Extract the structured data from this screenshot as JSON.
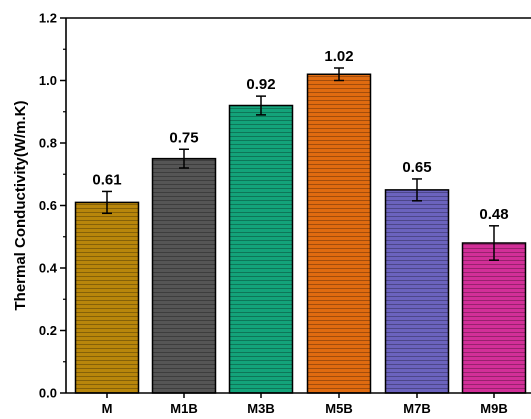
{
  "chart_data": {
    "type": "bar",
    "categories": [
      "M",
      "M1B",
      "M3B",
      "M5B",
      "M7B",
      "M9B"
    ],
    "values": [
      0.61,
      0.75,
      0.92,
      1.02,
      0.65,
      0.48
    ],
    "errors": [
      0.035,
      0.03,
      0.03,
      0.02,
      0.035,
      0.055
    ],
    "data_labels": [
      "0.61",
      "0.75",
      "0.92",
      "1.02",
      "0.65",
      "0.48"
    ],
    "colors": [
      "#b8860b",
      "#555555",
      "#13a37a",
      "#e06b10",
      "#6b63be",
      "#d22f98"
    ],
    "ylabel": "Thermal Conductivity(W/m.K)",
    "xlabel": "",
    "ylim": [
      0,
      1.2
    ],
    "yticks": [
      "0.0",
      "0.2",
      "0.4",
      "0.6",
      "0.8",
      "1.0",
      "1.2"
    ],
    "grid": false,
    "pattern": "horizontal-hatch"
  }
}
